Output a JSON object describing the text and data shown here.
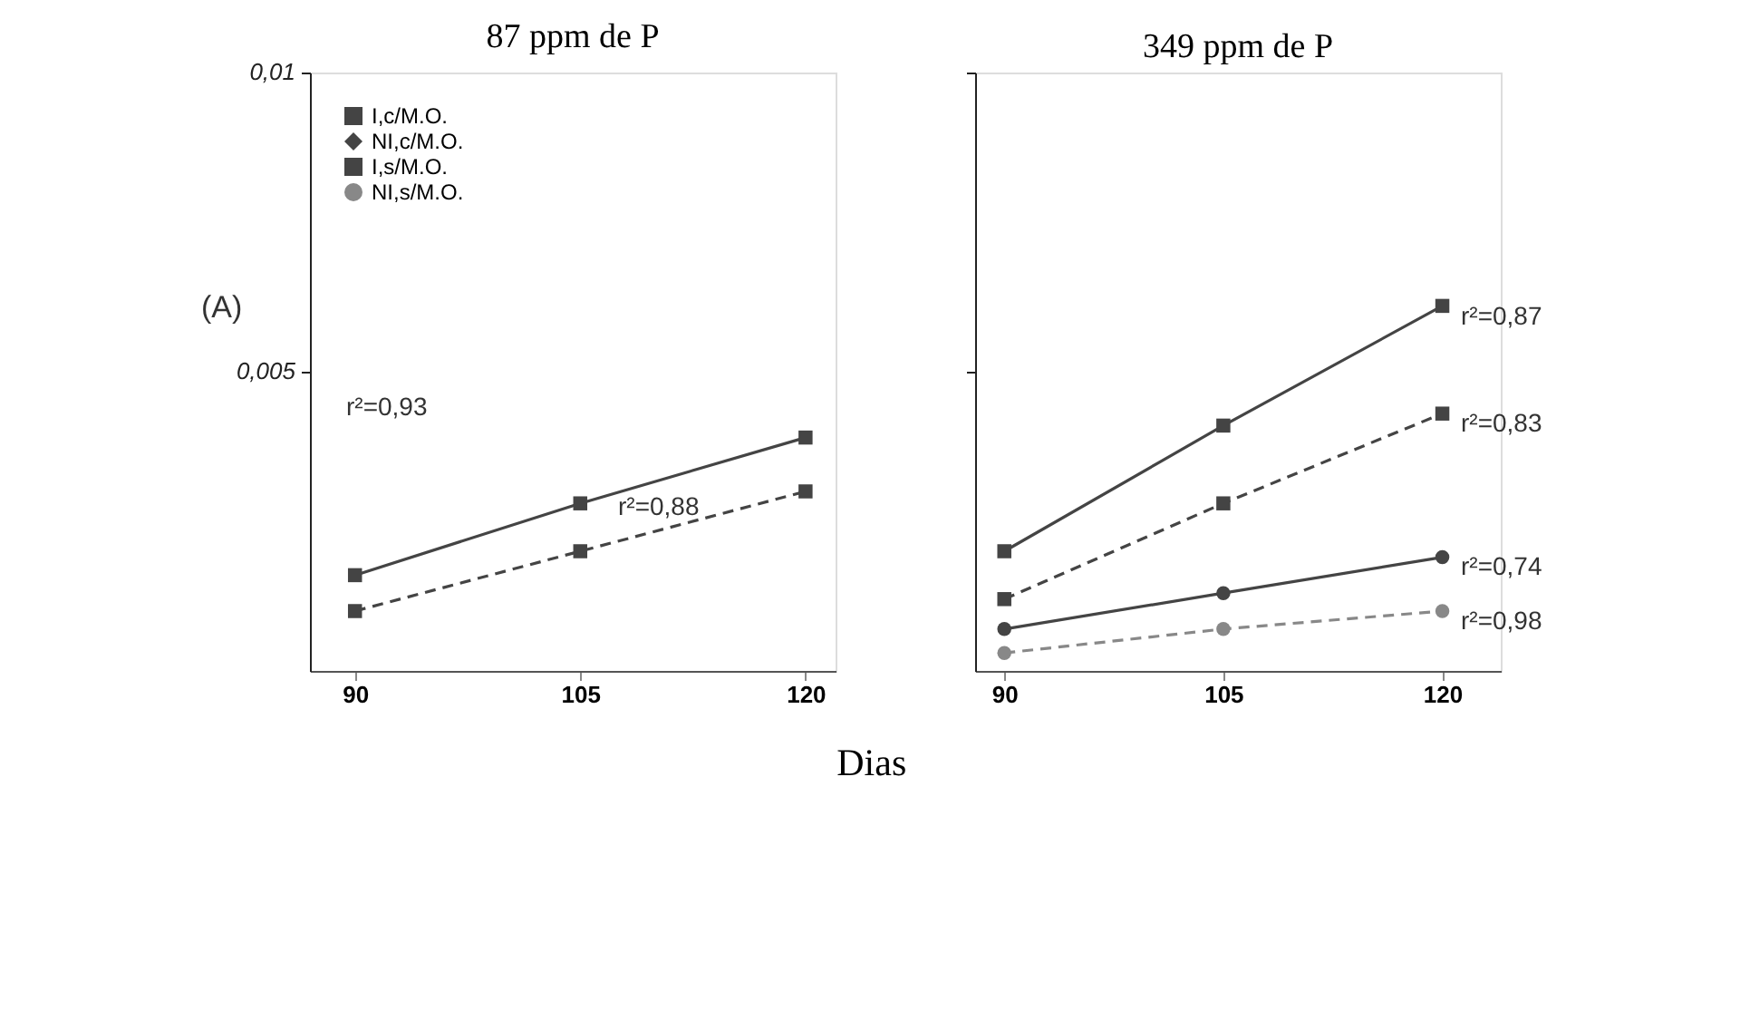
{
  "chart_data": [
    {
      "type": "line",
      "title": "87 ppm de P",
      "xlabel": "Dias",
      "x": [
        90,
        105,
        120
      ],
      "series": [
        {
          "name": "I,c/M.O.",
          "color": "#444444",
          "marker": "square",
          "line_style": "solid",
          "values": [
            0.0016,
            0.0028,
            0.0039
          ]
        },
        {
          "name": "NI,c/M.O.",
          "color": "#444444",
          "marker": "diamond",
          "line_style": "solid",
          "values": [
            null,
            null,
            null
          ]
        },
        {
          "name": "I,s/M.O.",
          "color": "#444444",
          "marker": "square",
          "line_style": "dashed",
          "values": [
            0.001,
            0.002,
            0.003
          ]
        },
        {
          "name": "NI,s/M.O.",
          "color": "#888888",
          "marker": "circle",
          "line_style": "dashed",
          "values": [
            null,
            null,
            null
          ]
        }
      ],
      "xlim": [
        87,
        122
      ],
      "xticks": [
        90,
        105,
        120
      ],
      "ylim": [
        0,
        0.01
      ],
      "yticks": [
        {
          "value": 0.005,
          "label": "0,005"
        },
        {
          "value": 0.01,
          "label": "0,01"
        }
      ],
      "legend": "top left",
      "grid": false,
      "annotations": [
        "(A)",
        "r²=0,93",
        "r²=0,88"
      ]
    },
    {
      "type": "line",
      "title": "349 ppm de P",
      "x": [
        90,
        105,
        120
      ],
      "series": [
        {
          "color": "#444444",
          "marker": "square",
          "line_style": "solid",
          "values": [
            0.002,
            0.0041,
            0.0061
          ]
        },
        {
          "color": "#444444",
          "marker": "circle",
          "line_style": "solid",
          "values": [
            0.0007,
            0.0013,
            0.0019
          ]
        },
        {
          "color": "#444444",
          "marker": "square",
          "line_style": "dashed",
          "values": [
            0.0012,
            0.0028,
            0.0043
          ]
        },
        {
          "color": "#888888",
          "marker": "circle",
          "line_style": "dashed",
          "values": [
            0.0003,
            0.0007,
            0.001
          ]
        }
      ],
      "xlim": [
        88,
        124
      ],
      "xticks": [
        90,
        105,
        120
      ],
      "ylim": [
        0,
        0.01
      ],
      "yticks": [
        0.005,
        0.01
      ],
      "tick_labels": "x",
      "legend": false,
      "grid": false,
      "annotations": [
        "r²=0,87",
        "r²=0,83",
        "r²=0,74",
        "r²=0,98"
      ]
    }
  ]
}
